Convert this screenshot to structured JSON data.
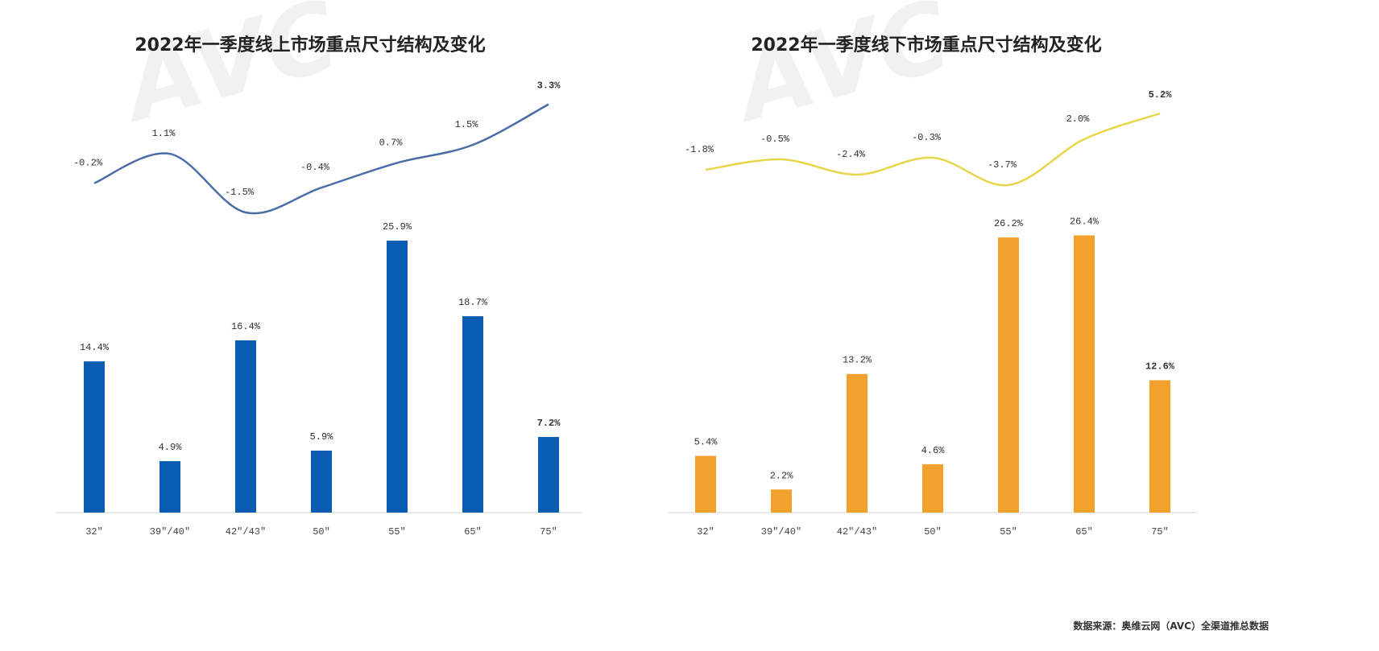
{
  "source_note": "数据来源：奥维云网（AVC）全渠道推总数据",
  "watermark": "AVC 奥维云网",
  "colors": {
    "online_bar": "#0b5cb3",
    "online_line": "#4a6da6",
    "offline_bar": "#f2a22c",
    "offline_line": "#e6d64a"
  },
  "chart_data": [
    {
      "type": "bar",
      "title": "2022年一季度线上市场重点尺寸结构及变化",
      "categories": [
        "32\"",
        "39\"/40\"",
        "42\"/43\"",
        "50\"",
        "55\"",
        "65\"",
        "75\""
      ],
      "values": [
        14.4,
        4.9,
        16.4,
        5.9,
        25.9,
        18.7,
        7.2
      ],
      "value_labels": [
        "14.4%",
        "4.9%",
        "16.4%",
        "5.9%",
        "25.9%",
        "18.7%",
        "7.2%"
      ],
      "line_series": {
        "type": "line",
        "values": [
          -0.2,
          1.1,
          -1.5,
          -0.4,
          0.7,
          1.5,
          3.3
        ],
        "labels": [
          "-0.2%",
          "1.1%",
          "-1.5%",
          "-0.4%",
          "0.7%",
          "1.5%",
          "3.3%"
        ]
      },
      "unit": "%"
    },
    {
      "type": "bar",
      "title": "2022年一季度线下市场重点尺寸结构及变化",
      "categories": [
        "32\"",
        "39\"/40\"",
        "42\"/43\"",
        "50\"",
        "55\"",
        "65\"",
        "75\""
      ],
      "values": [
        5.4,
        2.2,
        13.2,
        4.6,
        26.2,
        26.4,
        12.6
      ],
      "value_labels": [
        "5.4%",
        "2.2%",
        "13.2%",
        "4.6%",
        "26.2%",
        "26.4%",
        "12.6%"
      ],
      "line_series": {
        "type": "line",
        "values": [
          -1.8,
          -0.5,
          -2.4,
          -0.3,
          -3.7,
          2.0,
          5.2
        ],
        "labels": [
          "-1.8%",
          "-0.5%",
          "-2.4%",
          "-0.3%",
          "-3.7%",
          "2.0%",
          "5.2%"
        ]
      },
      "unit": "%"
    }
  ]
}
